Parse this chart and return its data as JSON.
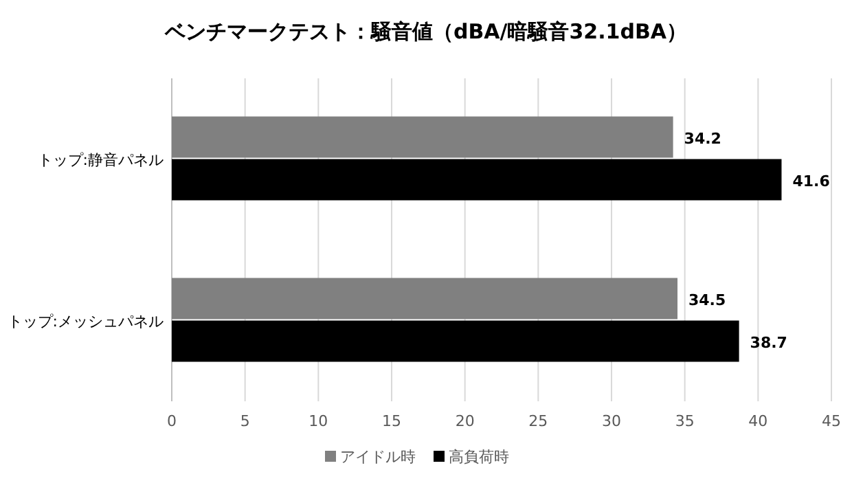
{
  "chart_data": {
    "type": "bar",
    "orientation": "horizontal",
    "title": "ベンチマークテスト：騒音値（dBA/暗騒音32.1dBA）",
    "categories": [
      "トップ:静音パネル",
      "トップ:メッシュパネル"
    ],
    "series": [
      {
        "name": "アイドル時",
        "color": "#808080",
        "values": [
          34.2,
          34.5
        ]
      },
      {
        "name": "高負荷時",
        "color": "#000000",
        "values": [
          41.6,
          38.7
        ]
      }
    ],
    "xlim": [
      0,
      45
    ],
    "xticks": [
      0,
      5,
      10,
      15,
      20,
      25,
      30,
      35,
      40,
      45
    ],
    "grid": "x",
    "legend": "bottom",
    "data_labels": true
  }
}
